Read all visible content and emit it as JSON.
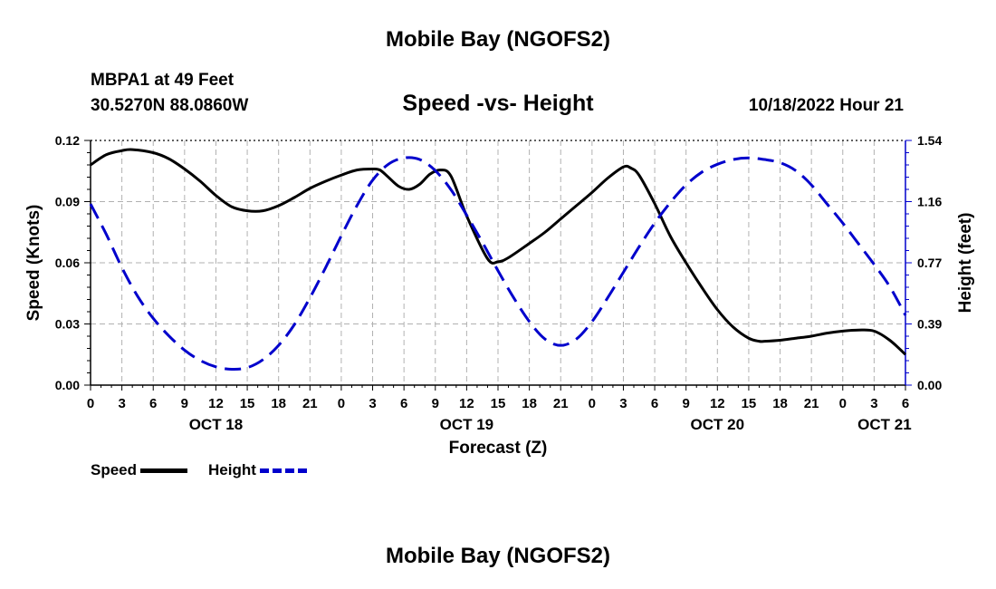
{
  "header": {
    "title": "Mobile Bay (NGOFS2)",
    "station": "MBPA1 at 49 Feet",
    "coordinates": "30.5270N  88.0860W",
    "chart_title": "Speed -vs- Height",
    "datetime": "10/18/2022 Hour 21"
  },
  "footer": {
    "title": "Mobile Bay (NGOFS2)"
  },
  "legend": {
    "speed_label": "Speed",
    "height_label": "Height"
  },
  "colors": {
    "speed": "#000000",
    "height": "#0000cc",
    "grid": "#b0b0b0"
  },
  "chart_data": {
    "type": "line",
    "title": "Speed -vs- Height",
    "xlabel": "Forecast (Z)",
    "ylabel_left": "Speed (Knots)",
    "ylabel_right": "Height (feet)",
    "x_unit": "hours from 00Z Oct 18",
    "xlim": [
      0,
      78
    ],
    "ylim_left": [
      0,
      0.12
    ],
    "ylim_right": [
      0,
      1.54
    ],
    "x_ticks": [
      {
        "x": 0,
        "label": "0"
      },
      {
        "x": 3,
        "label": "3"
      },
      {
        "x": 6,
        "label": "6"
      },
      {
        "x": 9,
        "label": "9"
      },
      {
        "x": 12,
        "label": "12"
      },
      {
        "x": 15,
        "label": "15"
      },
      {
        "x": 18,
        "label": "18"
      },
      {
        "x": 21,
        "label": "21"
      },
      {
        "x": 24,
        "label": "0"
      },
      {
        "x": 27,
        "label": "3"
      },
      {
        "x": 30,
        "label": "6"
      },
      {
        "x": 33,
        "label": "9"
      },
      {
        "x": 36,
        "label": "12"
      },
      {
        "x": 39,
        "label": "15"
      },
      {
        "x": 42,
        "label": "18"
      },
      {
        "x": 45,
        "label": "21"
      },
      {
        "x": 48,
        "label": "0"
      },
      {
        "x": 51,
        "label": "3"
      },
      {
        "x": 54,
        "label": "6"
      },
      {
        "x": 57,
        "label": "9"
      },
      {
        "x": 60,
        "label": "12"
      },
      {
        "x": 63,
        "label": "15"
      },
      {
        "x": 66,
        "label": "18"
      },
      {
        "x": 69,
        "label": "21"
      },
      {
        "x": 72,
        "label": "0"
      },
      {
        "x": 75,
        "label": "3"
      },
      {
        "x": 78,
        "label": "6"
      }
    ],
    "day_labels": [
      {
        "x": 12,
        "label": "OCT 18"
      },
      {
        "x": 36,
        "label": "OCT 19"
      },
      {
        "x": 60,
        "label": "OCT 20"
      },
      {
        "x": 76,
        "label": "OCT 21"
      }
    ],
    "y_ticks_left": [
      "0.00",
      "0.03",
      "0.06",
      "0.09",
      "0.12"
    ],
    "y_ticks_right": [
      "0.00",
      "0.39",
      "0.77",
      "1.16",
      "1.54"
    ],
    "grid": true,
    "legend_position": "bottom-left",
    "series": [
      {
        "name": "Speed",
        "axis": "left",
        "style": "solid",
        "x": [
          0,
          1.5,
          3,
          4,
          6,
          7.5,
          9,
          10.5,
          12,
          13.5,
          15,
          16.5,
          18,
          19.5,
          21,
          22.5,
          24,
          25.5,
          27,
          27.7,
          28.5,
          29.5,
          30.5,
          31.5,
          32.5,
          33.5,
          34.5,
          36,
          38,
          39,
          40,
          42,
          43.5,
          45,
          46.5,
          48,
          49.5,
          51,
          51.7,
          52.5,
          54,
          55.5,
          57,
          58.5,
          60,
          61.5,
          63,
          64,
          64.5,
          66,
          67.5,
          69,
          70.5,
          72,
          73.5,
          75,
          76.5,
          78
        ],
        "y": [
          0.108,
          0.113,
          0.115,
          0.1155,
          0.114,
          0.111,
          0.106,
          0.1,
          0.093,
          0.0875,
          0.0855,
          0.0855,
          0.088,
          0.092,
          0.0965,
          0.1,
          0.103,
          0.1055,
          0.106,
          0.1055,
          0.102,
          0.0975,
          0.096,
          0.0985,
          0.1035,
          0.1055,
          0.1025,
          0.083,
          0.062,
          0.0605,
          0.0625,
          0.0695,
          0.075,
          0.0815,
          0.088,
          0.0945,
          0.1015,
          0.107,
          0.1065,
          0.103,
          0.089,
          0.073,
          0.06,
          0.048,
          0.037,
          0.0285,
          0.023,
          0.0215,
          0.0215,
          0.022,
          0.023,
          0.024,
          0.0255,
          0.0265,
          0.027,
          0.0265,
          0.022,
          0.015
        ]
      },
      {
        "name": "Height",
        "axis": "right",
        "style": "dashed",
        "x": [
          0,
          1.5,
          3,
          4.5,
          6,
          7.5,
          9,
          10.5,
          12,
          13.5,
          15,
          16.5,
          18,
          19.5,
          21,
          22.5,
          24,
          25.5,
          27,
          28.5,
          30,
          31.5,
          33,
          34.5,
          36,
          37.5,
          39,
          40.5,
          42,
          43.5,
          45,
          46.5,
          48,
          49.5,
          51,
          52.5,
          54,
          55.5,
          57,
          58.5,
          60,
          61.5,
          63,
          64.5,
          66,
          67.5,
          69,
          70.5,
          72,
          73.5,
          75,
          76.5,
          78
        ],
        "y": [
          1.14,
          0.95,
          0.74,
          0.56,
          0.42,
          0.31,
          0.22,
          0.155,
          0.115,
          0.1,
          0.11,
          0.16,
          0.25,
          0.38,
          0.55,
          0.74,
          0.94,
          1.13,
          1.29,
          1.39,
          1.43,
          1.42,
          1.35,
          1.23,
          1.07,
          0.9,
          0.72,
          0.55,
          0.4,
          0.29,
          0.25,
          0.29,
          0.4,
          0.55,
          0.71,
          0.87,
          1.02,
          1.15,
          1.26,
          1.34,
          1.39,
          1.42,
          1.43,
          1.42,
          1.4,
          1.35,
          1.26,
          1.14,
          1.02,
          0.89,
          0.76,
          0.62,
          0.44
        ]
      }
    ]
  }
}
